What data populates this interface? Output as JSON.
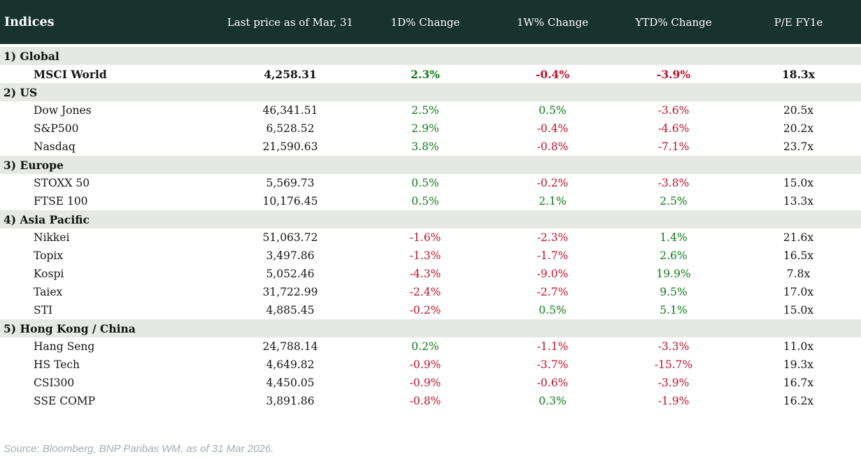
{
  "table": {
    "title": "Indices",
    "columns": [
      "Last price as of Mar, 31",
      "1D% Change",
      "1W% Change",
      "YTD% Change",
      "P/E FY1e"
    ]
  },
  "chart_data": {
    "type": "table",
    "title": "Indices",
    "columns": [
      "Indices",
      "Last price as of Mar, 31",
      "1D% Change",
      "1W% Change",
      "YTD% Change",
      "P/E FY1e"
    ],
    "sections": [
      {
        "label": "1) Global",
        "rows": [
          {
            "name": "MSCI World",
            "last_price": "4,258.31",
            "chg_1d": "2.3%",
            "chg_1w": "-0.4%",
            "chg_ytd": "-3.9%",
            "pe_fy1e": "18.3x",
            "emphasis": true
          }
        ]
      },
      {
        "label": "2) US",
        "rows": [
          {
            "name": "Dow Jones",
            "last_price": "46,341.51",
            "chg_1d": "2.5%",
            "chg_1w": "0.5%",
            "chg_ytd": "-3.6%",
            "pe_fy1e": "20.5x",
            "emphasis": false
          },
          {
            "name": "S&P500",
            "last_price": "6,528.52",
            "chg_1d": "2.9%",
            "chg_1w": "-0.4%",
            "chg_ytd": "-4.6%",
            "pe_fy1e": "20.2x",
            "emphasis": false
          },
          {
            "name": "Nasdaq",
            "last_price": "21,590.63",
            "chg_1d": "3.8%",
            "chg_1w": "-0.8%",
            "chg_ytd": "-7.1%",
            "pe_fy1e": "23.7x",
            "emphasis": false
          }
        ]
      },
      {
        "label": "3) Europe",
        "rows": [
          {
            "name": "STOXX 50",
            "last_price": "5,569.73",
            "chg_1d": "0.5%",
            "chg_1w": "-0.2%",
            "chg_ytd": "-3.8%",
            "pe_fy1e": "15.0x",
            "emphasis": false
          },
          {
            "name": "FTSE 100",
            "last_price": "10,176.45",
            "chg_1d": "0.5%",
            "chg_1w": "2.1%",
            "chg_ytd": "2.5%",
            "pe_fy1e": "13.3x",
            "emphasis": false
          }
        ]
      },
      {
        "label": "4) Asia Pacific",
        "rows": [
          {
            "name": "Nikkei",
            "last_price": "51,063.72",
            "chg_1d": "-1.6%",
            "chg_1w": "-2.3%",
            "chg_ytd": "1.4%",
            "pe_fy1e": "21.6x",
            "emphasis": false
          },
          {
            "name": "Topix",
            "last_price": "3,497.86",
            "chg_1d": "-1.3%",
            "chg_1w": "-1.7%",
            "chg_ytd": "2.6%",
            "pe_fy1e": "16.5x",
            "emphasis": false
          },
          {
            "name": "Kospi",
            "last_price": "5,052.46",
            "chg_1d": "-4.3%",
            "chg_1w": "-9.0%",
            "chg_ytd": "19.9%",
            "pe_fy1e": "7.8x",
            "emphasis": false
          },
          {
            "name": "Taiex",
            "last_price": "31,722.99",
            "chg_1d": "-2.4%",
            "chg_1w": "-2.7%",
            "chg_ytd": "9.5%",
            "pe_fy1e": "17.0x",
            "emphasis": false
          },
          {
            "name": "STI",
            "last_price": "4,885.45",
            "chg_1d": "-0.2%",
            "chg_1w": "0.5%",
            "chg_ytd": "5.1%",
            "pe_fy1e": "15.0x",
            "emphasis": false
          }
        ]
      },
      {
        "label": "5) Hong Kong / China",
        "rows": [
          {
            "name": "Hang Seng",
            "last_price": "24,788.14",
            "chg_1d": "0.2%",
            "chg_1w": "-1.1%",
            "chg_ytd": "-3.3%",
            "pe_fy1e": "11.0x",
            "emphasis": false
          },
          {
            "name": "HS Tech",
            "last_price": "4,649.82",
            "chg_1d": "-0.9%",
            "chg_1w": "-3.7%",
            "chg_ytd": "-15.7%",
            "pe_fy1e": "19.3x",
            "emphasis": false
          },
          {
            "name": "CSI300",
            "last_price": "4,450.05",
            "chg_1d": "-0.9%",
            "chg_1w": "-0.6%",
            "chg_ytd": "-3.9%",
            "pe_fy1e": "16.7x",
            "emphasis": false
          },
          {
            "name": "SSE COMP",
            "last_price": "3,891.86",
            "chg_1d": "-0.8%",
            "chg_1w": "0.3%",
            "chg_ytd": "-1.9%",
            "pe_fy1e": "16.2x",
            "emphasis": false
          }
        ]
      }
    ]
  },
  "footer": {
    "source": "Source: Bloomberg, BNP Paribas WM, as of 31 Mar 2026."
  },
  "colors": {
    "header_bg": "#18332c",
    "section_bg": "#e5e8e4",
    "positive": "#0d7b17",
    "negative": "#c1112b"
  }
}
